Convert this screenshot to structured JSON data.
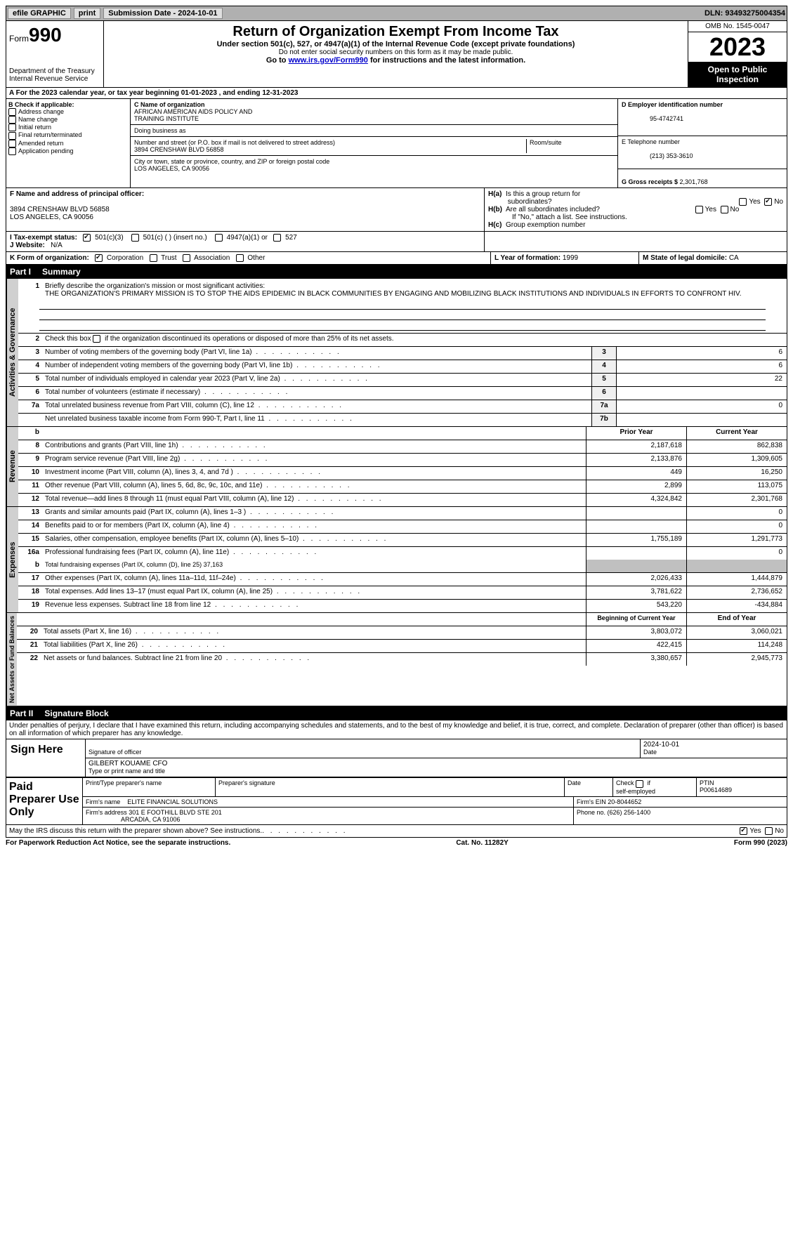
{
  "topbar": {
    "efile": "efile GRAPHIC",
    "print": "print",
    "sub_label": "Submission Date - ",
    "sub_date": "2024-10-01",
    "dln_label": "DLN: ",
    "dln": "93493275004354"
  },
  "header": {
    "form_prefix": "Form",
    "form_num": "990",
    "dept1": "Department of the Treasury",
    "dept2": "Internal Revenue Service",
    "title": "Return of Organization Exempt From Income Tax",
    "sub1": "Under section 501(c), 527, or 4947(a)(1) of the Internal Revenue Code (except private foundations)",
    "sub2": "Do not enter social security numbers on this form as it may be made public.",
    "sub3_pre": "Go to ",
    "sub3_link": "www.irs.gov/Form990",
    "sub3_post": " for instructions and the latest information.",
    "omb": "OMB No. 1545-0047",
    "year": "2023",
    "inspect": "Open to Public Inspection"
  },
  "line_a": "A For the 2023 calendar year, or tax year beginning 01-01-2023   , and ending 12-31-2023",
  "b": {
    "header": "B Check if applicable:",
    "addr": "Address change",
    "name": "Name change",
    "init": "Initial return",
    "final": "Final return/terminated",
    "amend": "Amended return",
    "app": "Application pending"
  },
  "c": {
    "name_lbl": "C Name of organization",
    "name1": "AFRICAN AMERICAN AIDS POLICY AND",
    "name2": "TRAINING INSTITUTE",
    "dba_lbl": "Doing business as",
    "street_lbl": "Number and street (or P.O. box if mail is not delivered to street address)",
    "street": "3894 CRENSHAW BLVD 56858",
    "room_lbl": "Room/suite",
    "city_lbl": "City or town, state or province, country, and ZIP or foreign postal code",
    "city": "LOS ANGELES, CA  90056"
  },
  "d": {
    "ein_lbl": "D Employer identification number",
    "ein": "95-4742741",
    "tel_lbl": "E Telephone number",
    "tel": "(213) 353-3610",
    "gross_lbl": "G Gross receipts $ ",
    "gross": "2,301,768"
  },
  "f": {
    "lbl": "F  Name and address of principal officer:",
    "addr1": "3894 CRENSHAW BLVD 56858",
    "addr2": "LOS ANGELES, CA  90056"
  },
  "h": {
    "a_lbl": "H(a)  Is this a group return for subordinates?",
    "yes": "Yes",
    "no": "No",
    "b_lbl": "H(b)  Are all subordinates included?",
    "b_note": "If \"No,\" attach a list. See instructions.",
    "c_lbl": "H(c)  Group exemption number  "
  },
  "i": {
    "lbl": "I    Tax-exempt status:",
    "a": "501(c)(3)",
    "b": "501(c) (  ) (insert no.)",
    "c": "4947(a)(1) or",
    "d": "527"
  },
  "j": {
    "lbl": "J   Website: ",
    "val": "N/A"
  },
  "k": {
    "lbl": "K Form of organization:",
    "corp": "Corporation",
    "trust": "Trust",
    "assoc": "Association",
    "other": "Other"
  },
  "l": {
    "lbl": "L Year of formation: ",
    "val": "1999"
  },
  "m": {
    "lbl": "M State of legal domicile: ",
    "val": "CA"
  },
  "part1": {
    "num": "Part I",
    "title": "Summary"
  },
  "tabs": {
    "ag": "Activities & Governance",
    "rev": "Revenue",
    "exp": "Expenses",
    "na": "Net Assets or Fund Balances"
  },
  "s1": {
    "num": "1",
    "desc": "Briefly describe the organization's mission or most significant activities:",
    "mission": "THE ORGANIZATION'S PRIMARY MISSION IS TO STOP THE AIDS EPIDEMIC IN BLACK COMMUNITIES BY ENGAGING AND MOBILIZING BLACK INSTITUTIONS AND INDIVIDUALS IN EFFORTS TO CONFRONT HIV."
  },
  "s2": {
    "num": "2",
    "desc": "Check this box      if the organization discontinued its operations or disposed of more than 25% of its net assets."
  },
  "rows_ag": [
    {
      "num": "3",
      "desc": "Number of voting members of the governing body (Part VI, line 1a)",
      "box": "3",
      "val": "6"
    },
    {
      "num": "4",
      "desc": "Number of independent voting members of the governing body (Part VI, line 1b)",
      "box": "4",
      "val": "6"
    },
    {
      "num": "5",
      "desc": "Total number of individuals employed in calendar year 2023 (Part V, line 2a)",
      "box": "5",
      "val": "22"
    },
    {
      "num": "6",
      "desc": "Total number of volunteers (estimate if necessary)",
      "box": "6",
      "val": ""
    },
    {
      "num": "7a",
      "desc": "Total unrelated business revenue from Part VIII, column (C), line 12",
      "box": "7a",
      "val": "0"
    },
    {
      "num": "",
      "desc": "Net unrelated business taxable income from Form 990-T, Part I, line 11",
      "box": "7b",
      "val": ""
    }
  ],
  "col_head": {
    "num": "b",
    "prior": "Prior Year",
    "curr": "Current Year"
  },
  "rows_rev": [
    {
      "num": "8",
      "desc": "Contributions and grants (Part VIII, line 1h)",
      "prior": "2,187,618",
      "curr": "862,838"
    },
    {
      "num": "9",
      "desc": "Program service revenue (Part VIII, line 2g)",
      "prior": "2,133,876",
      "curr": "1,309,605"
    },
    {
      "num": "10",
      "desc": "Investment income (Part VIII, column (A), lines 3, 4, and 7d )",
      "prior": "449",
      "curr": "16,250"
    },
    {
      "num": "11",
      "desc": "Other revenue (Part VIII, column (A), lines 5, 6d, 8c, 9c, 10c, and 11e)",
      "prior": "2,899",
      "curr": "113,075"
    },
    {
      "num": "12",
      "desc": "Total revenue—add lines 8 through 11 (must equal Part VIII, column (A), line 12)",
      "prior": "4,324,842",
      "curr": "2,301,768"
    }
  ],
  "rows_exp": [
    {
      "num": "13",
      "desc": "Grants and similar amounts paid (Part IX, column (A), lines 1–3 )",
      "prior": "",
      "curr": "0"
    },
    {
      "num": "14",
      "desc": "Benefits paid to or for members (Part IX, column (A), line 4)",
      "prior": "",
      "curr": "0"
    },
    {
      "num": "15",
      "desc": "Salaries, other compensation, employee benefits (Part IX, column (A), lines 5–10)",
      "prior": "1,755,189",
      "curr": "1,291,773"
    },
    {
      "num": "16a",
      "desc": "Professional fundraising fees (Part IX, column (A), line 11e)",
      "prior": "",
      "curr": "0"
    }
  ],
  "row_16b": {
    "num": "b",
    "desc_pre": "Total fundraising expenses (Part IX, column (D), line 25) ",
    "val": "37,163"
  },
  "rows_exp2": [
    {
      "num": "17",
      "desc": "Other expenses (Part IX, column (A), lines 11a–11d, 11f–24e)",
      "prior": "2,026,433",
      "curr": "1,444,879"
    },
    {
      "num": "18",
      "desc": "Total expenses. Add lines 13–17 (must equal Part IX, column (A), line 25)",
      "prior": "3,781,622",
      "curr": "2,736,652"
    },
    {
      "num": "19",
      "desc": "Revenue less expenses. Subtract line 18 from line 12",
      "prior": "543,220",
      "curr": "-434,884"
    }
  ],
  "na_head": {
    "prior": "Beginning of Current Year",
    "curr": "End of Year"
  },
  "rows_na": [
    {
      "num": "20",
      "desc": "Total assets (Part X, line 16)",
      "prior": "3,803,072",
      "curr": "3,060,021"
    },
    {
      "num": "21",
      "desc": "Total liabilities (Part X, line 26)",
      "prior": "422,415",
      "curr": "114,248"
    },
    {
      "num": "22",
      "desc": "Net assets or fund balances. Subtract line 21 from line 20",
      "prior": "3,380,657",
      "curr": "2,945,773"
    }
  ],
  "part2": {
    "num": "Part II",
    "title": "Signature Block"
  },
  "perjury": "Under penalties of perjury, I declare that I have examined this return, including accompanying schedules and statements, and to the best of my knowledge and belief, it is true, correct, and complete. Declaration of preparer (other than officer) is based on all information of which preparer has any knowledge.",
  "sign": {
    "lbl": "Sign Here",
    "sig_lbl": "Signature of officer",
    "date_lbl": "Date",
    "date": "2024-10-01",
    "name": "GILBERT KOUAME CFO",
    "name_lbl": "Type or print name and title"
  },
  "paid": {
    "lbl": "Paid Preparer Use Only",
    "prep_name_lbl": "Print/Type preparer's name",
    "prep_sig_lbl": "Preparer's signature",
    "date_lbl": "Date",
    "check_lbl": "Check        if self-employed",
    "ptin_lbl": "PTIN",
    "ptin": "P00614689",
    "firm_name_lbl": "Firm's name   ",
    "firm_name": "ELITE FINANCIAL SOLUTIONS",
    "firm_ein_lbl": "Firm's EIN  ",
    "firm_ein": "20-8044652",
    "firm_addr_lbl": "Firm's address ",
    "firm_addr1": "301 E FOOTHILL BLVD STE 201",
    "firm_addr2": "ARCADIA, CA  91006",
    "phone_lbl": "Phone no. ",
    "phone": "(626) 256-1400"
  },
  "discuss": {
    "q": "May the IRS discuss this return with the preparer shown above? See instructions.",
    "yes": "Yes",
    "no": "No"
  },
  "footer": {
    "left": "For Paperwork Reduction Act Notice, see the separate instructions.",
    "mid": "Cat. No. 11282Y",
    "right": "Form 990 (2023)"
  },
  "colors": {
    "black": "#000000",
    "grey_bg": "#d0d0d0",
    "link": "#0000cc"
  }
}
